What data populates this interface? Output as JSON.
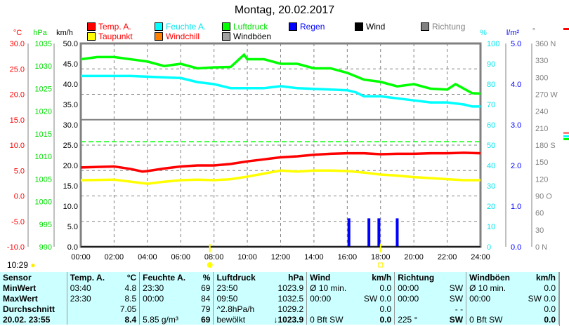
{
  "chart_data": {
    "type": "line",
    "title": "Montag, 20.02.2017",
    "x_unit": "hours",
    "x_ticks": [
      "00:00",
      "02:00",
      "04:00",
      "06:00",
      "08:00",
      "10:00",
      "12:00",
      "14:00",
      "16:00",
      "18:00",
      "20:00",
      "22:00",
      "24:00"
    ],
    "axes": {
      "temp": {
        "label": "°C",
        "range": [
          -10,
          30
        ],
        "ticks": [
          "30.0",
          "25.0",
          "20.0",
          "15.0",
          "10.0",
          "5.0",
          "0.0",
          "-5.0",
          "-10.0"
        ],
        "color": "#ff0000"
      },
      "pressure": {
        "label": "hPa",
        "range": [
          990,
          1035
        ],
        "ticks": [
          "1035",
          "1030",
          "1025",
          "1020",
          "1015",
          "1010",
          "1005",
          "1000",
          "995",
          "990"
        ],
        "color": "#00dd00"
      },
      "wind": {
        "label": "km/h",
        "range": [
          0,
          50
        ],
        "ticks": [
          "50.0",
          "45.0",
          "40.0",
          "35.0",
          "30.0",
          "25.0",
          "20.0",
          "15.0",
          "10.0",
          "5.0",
          "0.0"
        ],
        "color": "#000000"
      },
      "humidity": {
        "label": "%",
        "range": [
          0,
          100
        ],
        "ticks": [
          "100",
          "90",
          "80",
          "70",
          "60",
          "50",
          "40",
          "30",
          "20",
          "10",
          "0"
        ],
        "color": "#00e5ee"
      },
      "rain": {
        "label": "l/m²",
        "range": [
          0,
          5
        ],
        "ticks": [
          "5.0",
          "4.0",
          "3.0",
          "2.0",
          "1.0",
          "0.0"
        ],
        "color": "#0000ff"
      },
      "direction": {
        "label": "°",
        "range": [
          0,
          360
        ],
        "ticks": [
          "360 N",
          "330",
          "300",
          "270 W",
          "240",
          "210",
          "180 S",
          "150",
          "120",
          "90  O",
          "60",
          "30",
          "0   N"
        ],
        "color": "#808080"
      }
    },
    "legend": [
      {
        "name": "Temp. A.",
        "color": "#ff0000",
        "text": "#ff0000"
      },
      {
        "name": "Feuchte A.",
        "color": "#00ffff",
        "text": "#00e5ee"
      },
      {
        "name": "Luftdruck",
        "color": "#00ff00",
        "text": "#00dd00"
      },
      {
        "name": "Regen",
        "color": "#0000ff",
        "text": "#0000ff"
      },
      {
        "name": "Wind",
        "color": "#000000",
        "text": "#000000"
      },
      {
        "name": "Richtung",
        "color": "#808080",
        "text": "#808080"
      },
      {
        "name": "Taupunkt",
        "color": "#ffff00",
        "text": "#ff0000"
      },
      {
        "name": "Windchill",
        "color": "#ff8000",
        "text": "#ff0000"
      },
      {
        "name": "Windböen",
        "color": "#a0a0a0",
        "text": "#000000"
      }
    ],
    "series": [
      {
        "name": "Temp. A.",
        "axis": "temp",
        "color": "#ff0000",
        "points": [
          [
            0,
            5.6
          ],
          [
            1,
            5.7
          ],
          [
            2,
            5.8
          ],
          [
            3,
            5.3
          ],
          [
            3.7,
            4.8
          ],
          [
            4,
            4.9
          ],
          [
            5,
            5.4
          ],
          [
            6,
            5.8
          ],
          [
            7,
            6.0
          ],
          [
            8,
            6.0
          ],
          [
            9,
            6.3
          ],
          [
            10,
            6.8
          ],
          [
            11,
            7.2
          ],
          [
            12,
            7.6
          ],
          [
            13,
            7.8
          ],
          [
            14,
            8.1
          ],
          [
            15,
            8.3
          ],
          [
            16,
            8.4
          ],
          [
            17,
            8.4
          ],
          [
            18,
            8.2
          ],
          [
            19,
            8.3
          ],
          [
            20,
            8.3
          ],
          [
            21,
            8.4
          ],
          [
            22,
            8.4
          ],
          [
            23,
            8.5
          ],
          [
            24,
            8.4
          ]
        ]
      },
      {
        "name": "Taupunkt",
        "axis": "temp",
        "color": "#ffff00",
        "points": [
          [
            0,
            3.1
          ],
          [
            2,
            3.2
          ],
          [
            3,
            2.8
          ],
          [
            4,
            2.4
          ],
          [
            5,
            2.8
          ],
          [
            6,
            3.1
          ],
          [
            7,
            3.2
          ],
          [
            8,
            3.1
          ],
          [
            9,
            3.3
          ],
          [
            10,
            3.8
          ],
          [
            11,
            4.4
          ],
          [
            12,
            5.0
          ],
          [
            13,
            4.8
          ],
          [
            14,
            5.0
          ],
          [
            15,
            5.0
          ],
          [
            16,
            4.9
          ],
          [
            17,
            4.6
          ],
          [
            18,
            4.2
          ],
          [
            19,
            4.0
          ],
          [
            20,
            3.7
          ],
          [
            21,
            3.5
          ],
          [
            22,
            3.3
          ],
          [
            23,
            3.1
          ],
          [
            24,
            3.1
          ]
        ]
      },
      {
        "name": "Feuchte A.",
        "axis": "humidity",
        "color": "#00ffff",
        "points": [
          [
            0,
            84
          ],
          [
            3,
            84
          ],
          [
            6,
            83
          ],
          [
            7,
            81
          ],
          [
            8,
            80
          ],
          [
            9,
            78
          ],
          [
            11,
            78
          ],
          [
            12,
            79
          ],
          [
            13,
            78
          ],
          [
            16,
            77
          ],
          [
            16.5,
            76
          ],
          [
            17,
            74
          ],
          [
            18,
            74
          ],
          [
            19,
            73
          ],
          [
            20,
            72
          ],
          [
            21,
            71
          ],
          [
            22,
            71
          ],
          [
            23,
            70
          ],
          [
            23.5,
            69
          ],
          [
            24,
            69
          ]
        ]
      },
      {
        "name": "Luftdruck",
        "axis": "pressure",
        "color": "#00ff00",
        "points": [
          [
            0,
            1031.5
          ],
          [
            1,
            1032
          ],
          [
            2,
            1032
          ],
          [
            3,
            1031.5
          ],
          [
            4,
            1031
          ],
          [
            5,
            1030
          ],
          [
            6,
            1030.5
          ],
          [
            7,
            1029.5
          ],
          [
            8,
            1029.7
          ],
          [
            9,
            1029.8
          ],
          [
            9.8,
            1032.5
          ],
          [
            10,
            1031.5
          ],
          [
            11,
            1031.5
          ],
          [
            12,
            1030.5
          ],
          [
            13,
            1030.5
          ],
          [
            14,
            1029.5
          ],
          [
            15,
            1029.5
          ],
          [
            16,
            1028.5
          ],
          [
            17,
            1027
          ],
          [
            18,
            1026.5
          ],
          [
            19,
            1025.5
          ],
          [
            20,
            1026
          ],
          [
            21,
            1025
          ],
          [
            22,
            1024.8
          ],
          [
            22.5,
            1026
          ],
          [
            23,
            1025
          ],
          [
            23.5,
            1024
          ],
          [
            24,
            1023.9
          ]
        ]
      },
      {
        "name": "Wind",
        "axis": "wind",
        "color": "#000000",
        "points": [
          [
            0,
            0
          ],
          [
            24,
            0
          ]
        ]
      }
    ],
    "rain_bars": {
      "axis": "rain",
      "color": "#0000ff",
      "points": [
        [
          16.1,
          0.7
        ],
        [
          17.3,
          0.7
        ],
        [
          17.9,
          0.7
        ],
        [
          19.0,
          0.7
        ]
      ]
    },
    "reference_line": {
      "name": "1013.25 hPa",
      "axis": "pressure",
      "value": 1013.25,
      "color": "#00ff00"
    },
    "sunrise": "07:45",
    "sunset": "18:00",
    "grid": true
  },
  "status": {
    "moon_time": "10:29"
  },
  "table": {
    "headers": [
      "Sensor",
      "Temp. A.",
      "°C",
      "Feuchte A.",
      "%",
      "Luftdruck",
      "hPa",
      "Wind",
      "km/h",
      "Richtung",
      "",
      "Windböen",
      "km/h"
    ],
    "rows": [
      [
        "MinWert",
        "03:40",
        "4.8",
        "23:30",
        "69",
        "23:50",
        "1023.9",
        "Ø 10 min.",
        "0.0",
        "00:00",
        "SW",
        "Ø 10 min.",
        "0.0"
      ],
      [
        "MaxWert",
        "23:30",
        "8.5",
        "00:00",
        "84",
        "09:50",
        "1032.5",
        "00:00",
        "SW 0.0",
        "00:00",
        "SW",
        "00:00",
        "SW 0.0"
      ],
      [
        "Durchschnitt",
        "",
        "7.05",
        "",
        "79",
        "^2.8hPa/h",
        "1029.2",
        "",
        "0.0",
        "",
        "- -",
        "",
        "0.0"
      ],
      [
        "20.02. 23:55",
        "",
        "8.4",
        "5.85 g/m³",
        "69",
        "bewölkt",
        "↓1023.9",
        "0 Bft SW",
        "0.0",
        "225 °",
        "SW",
        "0 Bft SW",
        "0.0"
      ]
    ]
  }
}
